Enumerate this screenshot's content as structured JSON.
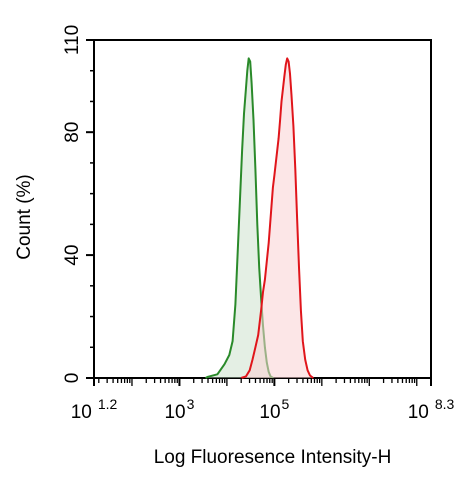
{
  "chart_data": {
    "type": "area",
    "title": "",
    "xlabel": "Log Fluoresence Intensity-H",
    "ylabel": "Count  (%)",
    "x_scale": "log10",
    "xlim_log10": [
      1.2,
      8.3
    ],
    "ylim": [
      0,
      110
    ],
    "grid": false,
    "legend": "none",
    "x_ticks": [
      {
        "base": "10",
        "exp": "1.2",
        "value_log10": 1.2
      },
      {
        "base": "10",
        "exp": "3",
        "value_log10": 3
      },
      {
        "base": "10",
        "exp": "5",
        "value_log10": 5
      },
      {
        "base": "10",
        "exp": "8.3",
        "value_log10": 8.3
      }
    ],
    "y_ticks": [
      "0",
      "40",
      "80",
      "110"
    ],
    "y_tick_values": [
      0,
      40,
      80,
      110
    ],
    "series": [
      {
        "color": "#2a8a2a",
        "fill": "rgba(196,220,196,0.45)",
        "points_log10_x": [
          [
            3.55,
            0
          ],
          [
            3.6,
            0.4
          ],
          [
            3.8,
            1.2
          ],
          [
            3.95,
            4.5
          ],
          [
            4.05,
            7.5
          ],
          [
            4.12,
            12
          ],
          [
            4.18,
            24
          ],
          [
            4.22,
            38
          ],
          [
            4.27,
            56
          ],
          [
            4.32,
            74
          ],
          [
            4.36,
            86
          ],
          [
            4.4,
            94
          ],
          [
            4.43,
            100
          ],
          [
            4.46,
            104
          ],
          [
            4.49,
            103
          ],
          [
            4.52,
            96
          ],
          [
            4.56,
            84
          ],
          [
            4.6,
            68
          ],
          [
            4.64,
            50
          ],
          [
            4.68,
            36
          ],
          [
            4.72,
            26
          ],
          [
            4.76,
            17
          ],
          [
            4.8,
            10
          ],
          [
            4.84,
            5
          ],
          [
            4.88,
            2
          ],
          [
            4.92,
            0.5
          ],
          [
            4.98,
            0
          ]
        ]
      },
      {
        "color": "#e0151b",
        "fill": "rgba(250,210,212,0.55)",
        "points_log10_x": [
          [
            4.3,
            0
          ],
          [
            4.4,
            0.5
          ],
          [
            4.48,
            2.5
          ],
          [
            4.54,
            6
          ],
          [
            4.6,
            10
          ],
          [
            4.66,
            14
          ],
          [
            4.72,
            22
          ],
          [
            4.76,
            28
          ],
          [
            4.8,
            32
          ],
          [
            4.84,
            38
          ],
          [
            4.88,
            44
          ],
          [
            4.91,
            50
          ],
          [
            4.94,
            56
          ],
          [
            4.97,
            62
          ],
          [
            5.0,
            66
          ],
          [
            5.03,
            70
          ],
          [
            5.06,
            74
          ],
          [
            5.09,
            78
          ],
          [
            5.12,
            84
          ],
          [
            5.15,
            90
          ],
          [
            5.18,
            94
          ],
          [
            5.21,
            98
          ],
          [
            5.24,
            102
          ],
          [
            5.27,
            104
          ],
          [
            5.3,
            103
          ],
          [
            5.33,
            99
          ],
          [
            5.36,
            92
          ],
          [
            5.4,
            82
          ],
          [
            5.44,
            68
          ],
          [
            5.48,
            52
          ],
          [
            5.52,
            36
          ],
          [
            5.56,
            22
          ],
          [
            5.6,
            12
          ],
          [
            5.65,
            6
          ],
          [
            5.7,
            2.5
          ],
          [
            5.75,
            0.8
          ],
          [
            5.82,
            0
          ]
        ]
      }
    ]
  }
}
